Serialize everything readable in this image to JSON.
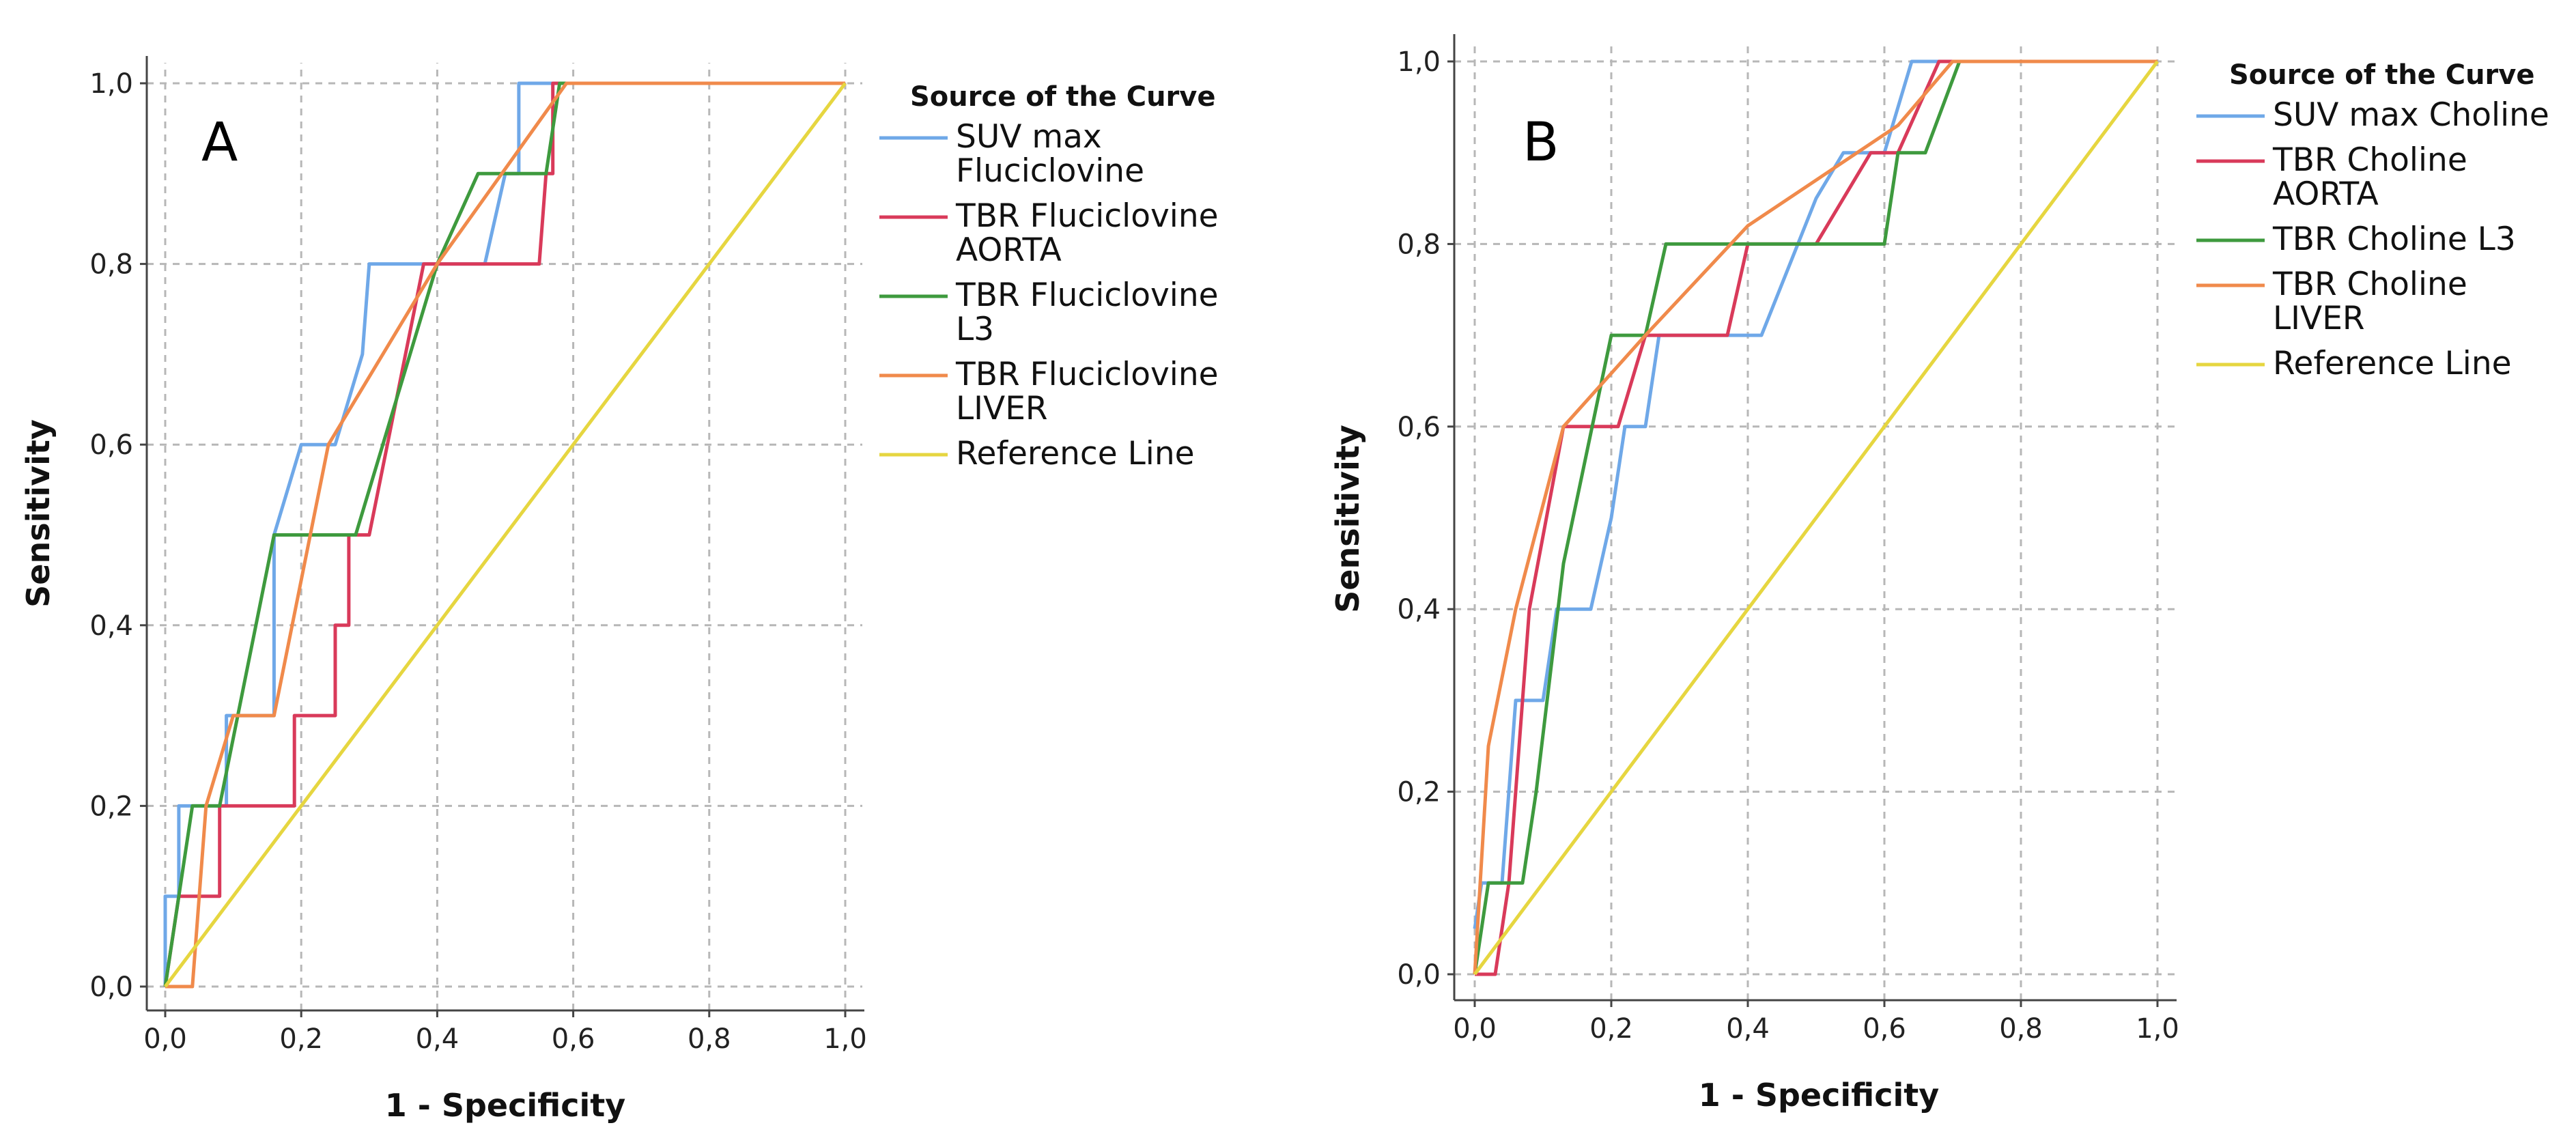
{
  "chart_data": [
    {
      "type": "line",
      "panel_label": "A",
      "xlabel": "1 - Specificity",
      "ylabel": "Sensitivity",
      "xlim": [
        0,
        1
      ],
      "ylim": [
        0,
        1
      ],
      "x_ticks": [
        0,
        0.2,
        0.4,
        0.6,
        0.8,
        1.0
      ],
      "y_ticks": [
        0,
        0.2,
        0.4,
        0.6,
        0.8,
        1.0
      ],
      "x_tick_labels": [
        "0,0",
        "0,2",
        "0,4",
        "0,6",
        "0,8",
        "1,0"
      ],
      "y_tick_labels": [
        "0,0",
        "0,2",
        "0,4",
        "0,6",
        "0,8",
        "1,0"
      ],
      "grid": true,
      "legend_title": "Source of the Curve",
      "legend_position": "right",
      "series": [
        {
          "name": "SUV max Fluciclovine",
          "label_lines": [
            "SUV max",
            "Fluciclovine"
          ],
          "color": "#6fa8e8",
          "points": [
            [
              0,
              0
            ],
            [
              0,
              0.1
            ],
            [
              0.02,
              0.1
            ],
            [
              0.02,
              0.2
            ],
            [
              0.09,
              0.2
            ],
            [
              0.09,
              0.3
            ],
            [
              0.16,
              0.3
            ],
            [
              0.16,
              0.5
            ],
            [
              0.2,
              0.6
            ],
            [
              0.25,
              0.6
            ],
            [
              0.29,
              0.7
            ],
            [
              0.3,
              0.8
            ],
            [
              0.47,
              0.8
            ],
            [
              0.5,
              0.9
            ],
            [
              0.52,
              0.9
            ],
            [
              0.52,
              1.0
            ],
            [
              1.0,
              1.0
            ]
          ]
        },
        {
          "name": "TBR Fluciclovine AORTA",
          "label_lines": [
            "TBR Fluciclovine",
            "AORTA"
          ],
          "color": "#d93a5a",
          "points": [
            [
              0,
              0
            ],
            [
              0.02,
              0.1
            ],
            [
              0.08,
              0.1
            ],
            [
              0.08,
              0.2
            ],
            [
              0.19,
              0.2
            ],
            [
              0.19,
              0.3
            ],
            [
              0.25,
              0.3
            ],
            [
              0.25,
              0.4
            ],
            [
              0.27,
              0.4
            ],
            [
              0.27,
              0.5
            ],
            [
              0.3,
              0.5
            ],
            [
              0.38,
              0.8
            ],
            [
              0.55,
              0.8
            ],
            [
              0.56,
              0.9
            ],
            [
              0.57,
              0.9
            ],
            [
              0.57,
              1.0
            ],
            [
              1.0,
              1.0
            ]
          ]
        },
        {
          "name": "TBR Fluciclovine L3",
          "label_lines": [
            "TBR Fluciclovine",
            "L3"
          ],
          "color": "#3e9a3e",
          "points": [
            [
              0,
              0
            ],
            [
              0.04,
              0.2
            ],
            [
              0.08,
              0.2
            ],
            [
              0.16,
              0.5
            ],
            [
              0.28,
              0.5
            ],
            [
              0.4,
              0.8
            ],
            [
              0.46,
              0.9
            ],
            [
              0.56,
              0.9
            ],
            [
              0.58,
              1.0
            ],
            [
              1.0,
              1.0
            ]
          ]
        },
        {
          "name": "TBR Fluciclovine LIVER",
          "label_lines": [
            "TBR Fluciclovine",
            "LIVER"
          ],
          "color": "#f08a4b",
          "points": [
            [
              0,
              0
            ],
            [
              0.04,
              0
            ],
            [
              0.06,
              0.2
            ],
            [
              0.1,
              0.3
            ],
            [
              0.16,
              0.3
            ],
            [
              0.24,
              0.6
            ],
            [
              0.4,
              0.8
            ],
            [
              0.59,
              1.0
            ],
            [
              1.0,
              1.0
            ]
          ]
        },
        {
          "name": "Reference Line",
          "label_lines": [
            "Reference Line"
          ],
          "color": "#e6d640",
          "points": [
            [
              0,
              0
            ],
            [
              1,
              1
            ]
          ]
        }
      ]
    },
    {
      "type": "line",
      "panel_label": "B",
      "xlabel": "1 - Specificity",
      "ylabel": "Sensitivity",
      "xlim": [
        0,
        1
      ],
      "ylim": [
        0,
        1
      ],
      "x_ticks": [
        0,
        0.2,
        0.4,
        0.6,
        0.8,
        1.0
      ],
      "y_ticks": [
        0,
        0.2,
        0.4,
        0.6,
        0.8,
        1.0
      ],
      "x_tick_labels": [
        "0,0",
        "0,2",
        "0,4",
        "0,6",
        "0,8",
        "1,0"
      ],
      "y_tick_labels": [
        "0,0",
        "0,2",
        "0,4",
        "0,6",
        "0,8",
        "1,0"
      ],
      "grid": true,
      "legend_title": "Source of the Curve",
      "legend_position": "right",
      "series": [
        {
          "name": "SUV max Choline",
          "label_lines": [
            "SUV max Choline"
          ],
          "color": "#6fa8e8",
          "points": [
            [
              0,
              0.05
            ],
            [
              0.01,
              0.1
            ],
            [
              0.04,
              0.1
            ],
            [
              0.06,
              0.3
            ],
            [
              0.1,
              0.3
            ],
            [
              0.12,
              0.4
            ],
            [
              0.17,
              0.4
            ],
            [
              0.2,
              0.5
            ],
            [
              0.22,
              0.6
            ],
            [
              0.25,
              0.6
            ],
            [
              0.27,
              0.7
            ],
            [
              0.42,
              0.7
            ],
            [
              0.5,
              0.85
            ],
            [
              0.54,
              0.9
            ],
            [
              0.6,
              0.9
            ],
            [
              0.64,
              1.0
            ],
            [
              1.0,
              1.0
            ]
          ]
        },
        {
          "name": "TBR Choline AORTA",
          "label_lines": [
            "TBR Choline",
            "AORTA"
          ],
          "color": "#d93a5a",
          "points": [
            [
              0,
              0
            ],
            [
              0.03,
              0
            ],
            [
              0.05,
              0.1
            ],
            [
              0.08,
              0.4
            ],
            [
              0.13,
              0.6
            ],
            [
              0.21,
              0.6
            ],
            [
              0.25,
              0.7
            ],
            [
              0.37,
              0.7
            ],
            [
              0.4,
              0.8
            ],
            [
              0.5,
              0.8
            ],
            [
              0.58,
              0.9
            ],
            [
              0.62,
              0.9
            ],
            [
              0.68,
              1.0
            ],
            [
              1.0,
              1.0
            ]
          ]
        },
        {
          "name": "TBR Choline L3",
          "label_lines": [
            "TBR Choline L3"
          ],
          "color": "#3e9a3e",
          "points": [
            [
              0,
              0
            ],
            [
              0.02,
              0.1
            ],
            [
              0.07,
              0.1
            ],
            [
              0.09,
              0.2
            ],
            [
              0.13,
              0.45
            ],
            [
              0.2,
              0.7
            ],
            [
              0.25,
              0.7
            ],
            [
              0.28,
              0.8
            ],
            [
              0.6,
              0.8
            ],
            [
              0.62,
              0.9
            ],
            [
              0.66,
              0.9
            ],
            [
              0.71,
              1.0
            ],
            [
              1.0,
              1.0
            ]
          ]
        },
        {
          "name": "TBR Choline LIVER",
          "label_lines": [
            "TBR Choline",
            "LIVER"
          ],
          "color": "#f08a4b",
          "points": [
            [
              0,
              0
            ],
            [
              0.02,
              0.25
            ],
            [
              0.06,
              0.4
            ],
            [
              0.13,
              0.6
            ],
            [
              0.25,
              0.7
            ],
            [
              0.4,
              0.82
            ],
            [
              0.62,
              0.93
            ],
            [
              0.7,
              1.0
            ],
            [
              1.0,
              1.0
            ]
          ]
        },
        {
          "name": "Reference Line",
          "label_lines": [
            "Reference Line"
          ],
          "color": "#e6d640",
          "points": [
            [
              0,
              0
            ],
            [
              1,
              1
            ]
          ]
        }
      ]
    }
  ]
}
